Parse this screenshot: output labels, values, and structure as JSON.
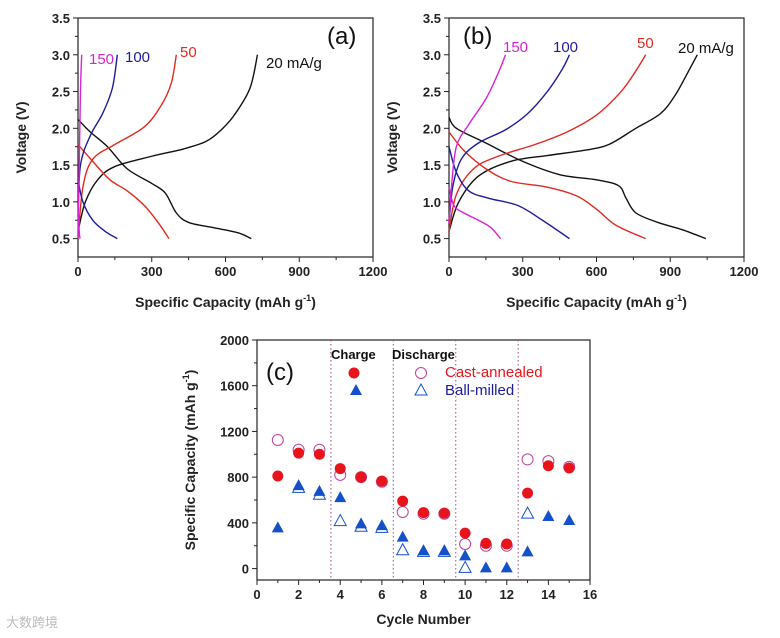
{
  "watermark": "大数跨境",
  "colors": {
    "black": "#111111",
    "red": "#e02a20",
    "blue": "#1c1c9c",
    "magenta": "#d623d6",
    "marker_red": "#e8141c",
    "marker_blue": "#1450c8",
    "open_pink": "#c0409a"
  },
  "chart_data": [
    {
      "type": "line",
      "panel_label": "(a)",
      "xlabel": "Specific Capacity (mAh g-1)",
      "ylabel": "Voltage (V)",
      "xlim": [
        0,
        1200
      ],
      "ylim": [
        0.25,
        3.5
      ],
      "xticks": [
        0,
        300,
        600,
        900,
        1200
      ],
      "yticks": [
        0.5,
        1.0,
        1.5,
        2.0,
        2.5,
        3.0,
        3.5
      ],
      "series": [
        {
          "name": "20 mA/g",
          "color": "black",
          "label": "20 mA/g",
          "charge": [
            [
              0,
              0.6
            ],
            [
              30,
              1.0
            ],
            [
              80,
              1.3
            ],
            [
              150,
              1.48
            ],
            [
              300,
              1.62
            ],
            [
              430,
              1.72
            ],
            [
              520,
              1.82
            ],
            [
              580,
              1.97
            ],
            [
              640,
              2.2
            ],
            [
              700,
              2.55
            ],
            [
              730,
              3.0
            ]
          ],
          "discharge": [
            [
              0,
              2.12
            ],
            [
              50,
              1.95
            ],
            [
              120,
              1.75
            ],
            [
              200,
              1.45
            ],
            [
              300,
              1.25
            ],
            [
              355,
              1.12
            ],
            [
              400,
              0.85
            ],
            [
              450,
              0.72
            ],
            [
              550,
              0.65
            ],
            [
              650,
              0.58
            ],
            [
              705,
              0.5
            ]
          ]
        },
        {
          "name": "50 mA/g",
          "color": "red",
          "label": "50",
          "charge": [
            [
              0,
              0.5
            ],
            [
              20,
              1.2
            ],
            [
              60,
              1.58
            ],
            [
              150,
              1.78
            ],
            [
              270,
              2.02
            ],
            [
              340,
              2.32
            ],
            [
              380,
              2.62
            ],
            [
              400,
              3.0
            ]
          ],
          "discharge": [
            [
              0,
              1.78
            ],
            [
              60,
              1.55
            ],
            [
              130,
              1.3
            ],
            [
              200,
              1.15
            ],
            [
              270,
              0.95
            ],
            [
              330,
              0.7
            ],
            [
              370,
              0.5
            ]
          ]
        },
        {
          "name": "100 mA/g",
          "color": "blue",
          "label": "100",
          "charge": [
            [
              0,
              0.8
            ],
            [
              10,
              1.5
            ],
            [
              50,
              1.9
            ],
            [
              100,
              2.2
            ],
            [
              140,
              2.55
            ],
            [
              160,
              3.0
            ]
          ],
          "discharge": [
            [
              0,
              1.3
            ],
            [
              20,
              1.0
            ],
            [
              60,
              0.75
            ],
            [
              110,
              0.6
            ],
            [
              160,
              0.5
            ]
          ]
        },
        {
          "name": "150 mA/g",
          "color": "magenta",
          "label": "150",
          "charge": [
            [
              0,
              0.5
            ],
            [
              5,
              1.5
            ],
            [
              10,
              2.5
            ],
            [
              15,
              3.0
            ]
          ],
          "discharge": [
            [
              0,
              0.9
            ],
            [
              5,
              0.6
            ],
            [
              8,
              0.5
            ]
          ]
        }
      ]
    },
    {
      "type": "line",
      "panel_label": "(b)",
      "xlabel": "Specific Capacity (mAh g-1)",
      "ylabel": "Voltage (V)",
      "xlim": [
        0,
        1200
      ],
      "ylim": [
        0.25,
        3.5
      ],
      "xticks": [
        0,
        300,
        600,
        900,
        1200
      ],
      "yticks": [
        0.5,
        1.0,
        1.5,
        2.0,
        2.5,
        3.0,
        3.5
      ],
      "series": [
        {
          "name": "20 mA/g",
          "color": "black",
          "label": "20 mA/g",
          "charge": [
            [
              0,
              0.6
            ],
            [
              40,
              1.0
            ],
            [
              120,
              1.35
            ],
            [
              250,
              1.55
            ],
            [
              400,
              1.63
            ],
            [
              550,
              1.7
            ],
            [
              650,
              1.78
            ],
            [
              760,
              2.0
            ],
            [
              860,
              2.2
            ],
            [
              920,
              2.45
            ],
            [
              970,
              2.75
            ],
            [
              1010,
              3.0
            ]
          ],
          "discharge": [
            [
              0,
              2.15
            ],
            [
              30,
              2.0
            ],
            [
              150,
              1.8
            ],
            [
              300,
              1.55
            ],
            [
              450,
              1.37
            ],
            [
              600,
              1.3
            ],
            [
              690,
              1.22
            ],
            [
              720,
              1.05
            ],
            [
              760,
              0.85
            ],
            [
              850,
              0.72
            ],
            [
              950,
              0.62
            ],
            [
              1045,
              0.5
            ]
          ]
        },
        {
          "name": "50 mA/g",
          "color": "red",
          "label": "50",
          "charge": [
            [
              0,
              0.6
            ],
            [
              30,
              1.1
            ],
            [
              100,
              1.45
            ],
            [
              200,
              1.62
            ],
            [
              350,
              1.78
            ],
            [
              480,
              1.95
            ],
            [
              600,
              2.18
            ],
            [
              700,
              2.5
            ],
            [
              760,
              2.78
            ],
            [
              800,
              3.0
            ]
          ],
          "discharge": [
            [
              0,
              1.95
            ],
            [
              60,
              1.7
            ],
            [
              150,
              1.45
            ],
            [
              250,
              1.28
            ],
            [
              400,
              1.2
            ],
            [
              520,
              1.08
            ],
            [
              600,
              0.9
            ],
            [
              680,
              0.68
            ],
            [
              800,
              0.5
            ]
          ]
        },
        {
          "name": "100 mA/g",
          "color": "blue",
          "label": "100",
          "charge": [
            [
              0,
              0.7
            ],
            [
              15,
              1.2
            ],
            [
              50,
              1.58
            ],
            [
              120,
              1.8
            ],
            [
              230,
              1.98
            ],
            [
              320,
              2.2
            ],
            [
              400,
              2.5
            ],
            [
              460,
              2.8
            ],
            [
              490,
              3.0
            ]
          ],
          "discharge": [
            [
              0,
              1.75
            ],
            [
              30,
              1.4
            ],
            [
              80,
              1.15
            ],
            [
              160,
              1.05
            ],
            [
              280,
              0.95
            ],
            [
              380,
              0.75
            ],
            [
              490,
              0.5
            ]
          ]
        },
        {
          "name": "150 mA/g",
          "color": "magenta",
          "label": "150",
          "charge": [
            [
              0,
              0.7
            ],
            [
              10,
              1.2
            ],
            [
              30,
              1.75
            ],
            [
              80,
              2.05
            ],
            [
              150,
              2.4
            ],
            [
              200,
              2.75
            ],
            [
              230,
              3.0
            ]
          ],
          "discharge": [
            [
              0,
              1.2
            ],
            [
              20,
              0.95
            ],
            [
              60,
              0.85
            ],
            [
              120,
              0.75
            ],
            [
              170,
              0.65
            ],
            [
              210,
              0.5
            ]
          ]
        }
      ]
    },
    {
      "type": "scatter",
      "panel_label": "(c)",
      "xlabel": "Cycle Number",
      "ylabel": "Specific Capacity (mAh g-1)",
      "xlim": [
        0,
        16
      ],
      "ylim": [
        -100,
        2000
      ],
      "xticks": [
        0,
        2,
        4,
        6,
        8,
        10,
        12,
        14,
        16
      ],
      "yticks": [
        0,
        400,
        800,
        1200,
        1600,
        2000
      ],
      "dividers": [
        3.55,
        6.55,
        9.55,
        12.55
      ],
      "legend": {
        "charge_header": "Charge",
        "discharge_header": "Discharge",
        "position": "top-right"
      },
      "x": [
        1,
        2,
        3,
        4,
        5,
        6,
        7,
        8,
        9,
        10,
        11,
        12,
        13,
        14,
        15
      ],
      "series": [
        {
          "name": "Cast-annealed",
          "mode": "Discharge",
          "marker": "open-circle",
          "color": "open_pink",
          "values": [
            1125,
            1040,
            1040,
            820,
            800,
            760,
            495,
            480,
            480,
            215,
            200,
            200,
            955,
            940,
            890
          ]
        },
        {
          "name": "Cast-annealed",
          "mode": "Charge",
          "marker": "filled-circle",
          "color": "marker_red",
          "values": [
            810,
            1010,
            1000,
            875,
            800,
            765,
            590,
            490,
            485,
            310,
            220,
            215,
            660,
            900,
            880
          ]
        },
        {
          "name": "Ball-milled",
          "mode": "Discharge",
          "marker": "open-triangle",
          "color": "marker_blue",
          "values": [
            null,
            710,
            650,
            420,
            370,
            360,
            165,
            150,
            150,
            10,
            null,
            null,
            485,
            null,
            null
          ]
        },
        {
          "name": "Ball-milled",
          "mode": "Charge",
          "marker": "filled-triangle",
          "color": "marker_blue",
          "values": [
            360,
            730,
            680,
            625,
            395,
            380,
            280,
            160,
            160,
            115,
            10,
            10,
            150,
            460,
            425
          ]
        }
      ],
      "legend_labels": {
        "cast": "Cast-annealed",
        "ball": "Ball-milled"
      }
    }
  ]
}
